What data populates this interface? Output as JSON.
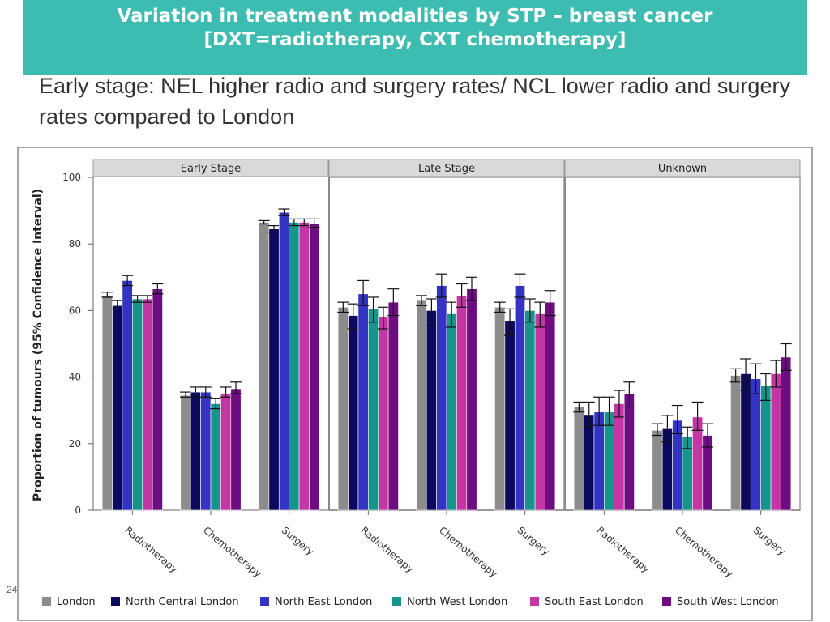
{
  "slide": {
    "title_line1": "Variation in treatment modalities by STP – breast cancer",
    "title_line2": "[DXT=radiotherapy, CXT chemotherapy]",
    "subtitle": "Early  stage: NEL higher radio and surgery rates/ NCL lower radio and surgery rates compared to London",
    "page_number": "24"
  },
  "chart_data": {
    "type": "bar",
    "ylabel": "Proportion of tumours (95% Confidence Interval)",
    "ylim": [
      0,
      100
    ],
    "yticks": [
      0,
      20,
      40,
      60,
      80,
      100
    ],
    "grid": false,
    "legend_position": "bottom",
    "categories": [
      "Radiotherapy",
      "Chemotherapy",
      "Surgery"
    ],
    "series": [
      {
        "name": "London",
        "color": "#8c8c8c"
      },
      {
        "name": "North Central London",
        "color": "#0c0a5e"
      },
      {
        "name": "North East London",
        "color": "#3434c4"
      },
      {
        "name": "North West London",
        "color": "#16958c"
      },
      {
        "name": "South East London",
        "color": "#c435a5"
      },
      {
        "name": "South West London",
        "color": "#6e0c82"
      }
    ],
    "panels": [
      {
        "title": "Early Stage",
        "values": [
          [
            64.5,
            61.5,
            69,
            63.5,
            63.5,
            66.5
          ],
          [
            34.5,
            35.5,
            35.5,
            32,
            35,
            36.5
          ],
          [
            86.5,
            84.5,
            89.5,
            86.5,
            86.5,
            86
          ]
        ],
        "ci": [
          [
            [
              64,
              65.5
            ],
            [
              60.5,
              63
            ],
            [
              67.5,
              70.5
            ],
            [
              62.5,
              64.5
            ],
            [
              62.5,
              64.5
            ],
            [
              65,
              68
            ]
          ],
          [
            [
              34,
              35.5
            ],
            [
              34,
              37
            ],
            [
              34,
              37
            ],
            [
              30.5,
              33.5
            ],
            [
              34,
              37
            ],
            [
              35,
              38.5
            ]
          ],
          [
            [
              86,
              87
            ],
            [
              83.5,
              85.5
            ],
            [
              88.5,
              90.5
            ],
            [
              85.5,
              87.5
            ],
            [
              85.5,
              87.5
            ],
            [
              85,
              87.5
            ]
          ]
        ]
      },
      {
        "title": "Late Stage",
        "values": [
          [
            61,
            58.5,
            65,
            60.5,
            58,
            62.5
          ],
          [
            63,
            60,
            67.5,
            59,
            64.5,
            66.5
          ],
          [
            61,
            57,
            67.5,
            60,
            59,
            62.5
          ]
        ],
        "ci": [
          [
            [
              59.5,
              62.5
            ],
            [
              54.5,
              62
            ],
            [
              61.5,
              69
            ],
            [
              56.5,
              64
            ],
            [
              54.5,
              61
            ],
            [
              58.5,
              66.5
            ]
          ],
          [
            [
              61.5,
              64.5
            ],
            [
              55.5,
              63.5
            ],
            [
              64,
              71
            ],
            [
              55,
              62.5
            ],
            [
              61,
              68
            ],
            [
              63,
              70
            ]
          ],
          [
            [
              59.5,
              62.5
            ],
            [
              52.5,
              60.5
            ],
            [
              64,
              71
            ],
            [
              56.5,
              63.5
            ],
            [
              55,
              62.5
            ],
            [
              58.5,
              66
            ]
          ]
        ]
      },
      {
        "title": "Unknown",
        "values": [
          [
            31,
            28.5,
            29.5,
            29.5,
            32,
            35
          ],
          [
            24,
            24.5,
            27,
            22,
            28,
            22.5
          ],
          [
            40.5,
            41,
            39.5,
            37.5,
            41,
            46
          ]
        ],
        "ci": [
          [
            [
              29.5,
              32.5
            ],
            [
              25,
              32.5
            ],
            [
              25.5,
              34
            ],
            [
              25.5,
              34
            ],
            [
              28,
              36
            ],
            [
              31,
              38.5
            ]
          ],
          [
            [
              22.5,
              26
            ],
            [
              20.5,
              28.5
            ],
            [
              23,
              31.5
            ],
            [
              18.5,
              25
            ],
            [
              24,
              32.5
            ],
            [
              19,
              26
            ]
          ],
          [
            [
              38.5,
              42.5
            ],
            [
              36,
              45.5
            ],
            [
              35,
              44
            ],
            [
              33,
              41
            ],
            [
              37,
              45
            ],
            [
              42,
              50
            ]
          ]
        ]
      }
    ]
  }
}
